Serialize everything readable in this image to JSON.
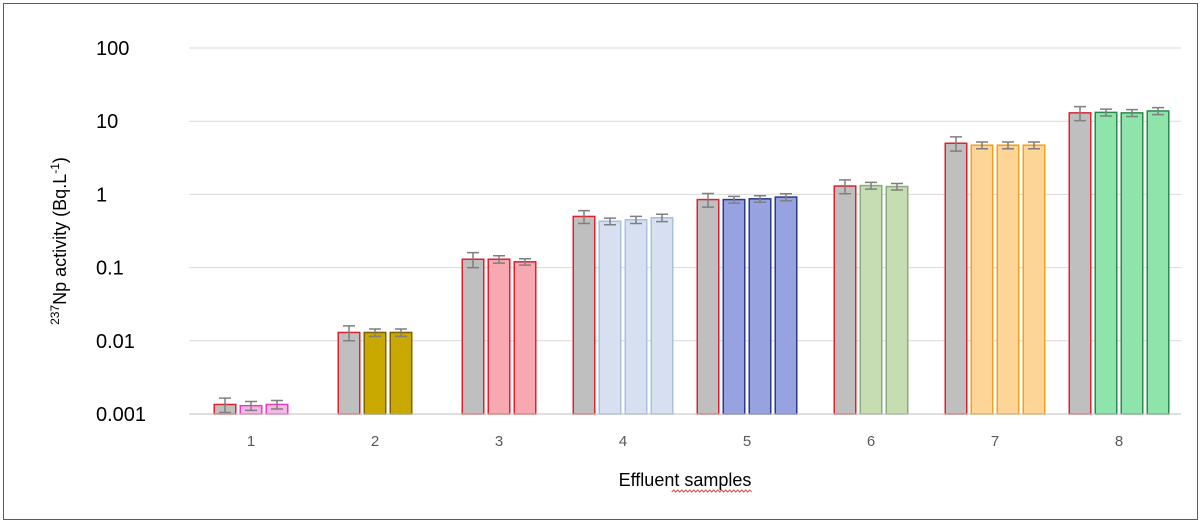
{
  "chart_data": {
    "type": "bar",
    "categories": [
      "1",
      "2",
      "3",
      "4",
      "5",
      "6",
      "7",
      "8"
    ],
    "xlabel": "Effluent samples",
    "ylabel": {
      "superscript_prefix": "237",
      "main": "Np activity (Bq.L",
      "superscript_unit": "-1",
      "suffix": ")"
    },
    "yscale": "log",
    "ylim": [
      0.001,
      100
    ],
    "y_ticks": [
      0.001,
      0.01,
      0.1,
      1,
      10,
      100
    ],
    "y_tick_labels": [
      "0.001",
      "0.01",
      "0.1",
      "1",
      "10",
      "100"
    ],
    "grid": true,
    "groups": [
      {
        "category": "1",
        "bars": [
          {
            "value": 0.00135,
            "err": 0.0003,
            "fill": "#bfbfbf",
            "stroke": "#d9232f"
          },
          {
            "value": 0.0013,
            "err": 0.00018,
            "fill": "#f4b8e4",
            "stroke": "#e040c0"
          },
          {
            "value": 0.00135,
            "err": 0.00018,
            "fill": "#f4b8e4",
            "stroke": "#e040c0"
          }
        ]
      },
      {
        "category": "2",
        "bars": [
          {
            "value": 0.013,
            "err": 0.003,
            "fill": "#bfbfbf",
            "stroke": "#d9232f"
          },
          {
            "value": 0.013,
            "err": 0.0015,
            "fill": "#c9a800",
            "stroke": "#7f6000"
          },
          {
            "value": 0.013,
            "err": 0.0015,
            "fill": "#c9a800",
            "stroke": "#7f6000"
          }
        ]
      },
      {
        "category": "3",
        "bars": [
          {
            "value": 0.13,
            "err": 0.03,
            "fill": "#bfbfbf",
            "stroke": "#d9232f"
          },
          {
            "value": 0.13,
            "err": 0.015,
            "fill": "#f8a8b0",
            "stroke": "#d9232f"
          },
          {
            "value": 0.12,
            "err": 0.012,
            "fill": "#f8a8b0",
            "stroke": "#d9232f"
          }
        ]
      },
      {
        "category": "4",
        "bars": [
          {
            "value": 0.5,
            "err": 0.1,
            "fill": "#bfbfbf",
            "stroke": "#d9232f"
          },
          {
            "value": 0.43,
            "err": 0.045,
            "fill": "#d6e0f0",
            "stroke": "#a8c0e0"
          },
          {
            "value": 0.45,
            "err": 0.05,
            "fill": "#d6e0f0",
            "stroke": "#a8c0e0"
          },
          {
            "value": 0.48,
            "err": 0.055,
            "fill": "#d6e0f0",
            "stroke": "#a8c0e0"
          }
        ]
      },
      {
        "category": "5",
        "bars": [
          {
            "value": 0.85,
            "err": 0.18,
            "fill": "#bfbfbf",
            "stroke": "#d9232f"
          },
          {
            "value": 0.85,
            "err": 0.09,
            "fill": "#96a3e0",
            "stroke": "#2a3a8c"
          },
          {
            "value": 0.87,
            "err": 0.09,
            "fill": "#96a3e0",
            "stroke": "#2a3a8c"
          },
          {
            "value": 0.92,
            "err": 0.1,
            "fill": "#96a3e0",
            "stroke": "#2a3a8c"
          }
        ]
      },
      {
        "category": "6",
        "bars": [
          {
            "value": 1.3,
            "err": 0.28,
            "fill": "#bfbfbf",
            "stroke": "#d9232f"
          },
          {
            "value": 1.32,
            "err": 0.14,
            "fill": "#c6ddb2",
            "stroke": "#8aaa80"
          },
          {
            "value": 1.28,
            "err": 0.13,
            "fill": "#c6ddb2",
            "stroke": "#8aaa80"
          }
        ]
      },
      {
        "category": "7",
        "bars": [
          {
            "value": 5.0,
            "err": 1.1,
            "fill": "#bfbfbf",
            "stroke": "#d9232f"
          },
          {
            "value": 4.7,
            "err": 0.5,
            "fill": "#fdd596",
            "stroke": "#f0a020"
          },
          {
            "value": 4.7,
            "err": 0.5,
            "fill": "#fdd596",
            "stroke": "#f0a020"
          },
          {
            "value": 4.7,
            "err": 0.5,
            "fill": "#fdd596",
            "stroke": "#f0a020"
          }
        ]
      },
      {
        "category": "8",
        "bars": [
          {
            "value": 13,
            "err": 2.8,
            "fill": "#bfbfbf",
            "stroke": "#d9232f"
          },
          {
            "value": 13.2,
            "err": 1.4,
            "fill": "#8ee4aa",
            "stroke": "#2a8a4a"
          },
          {
            "value": 13,
            "err": 1.4,
            "fill": "#8ee4aa",
            "stroke": "#2a8a4a"
          },
          {
            "value": 13.8,
            "err": 1.5,
            "fill": "#8ee4aa",
            "stroke": "#2a8a4a"
          }
        ]
      }
    ],
    "frame_border_color": "#d9232f",
    "error_bar_color": "#7f7f7f"
  }
}
